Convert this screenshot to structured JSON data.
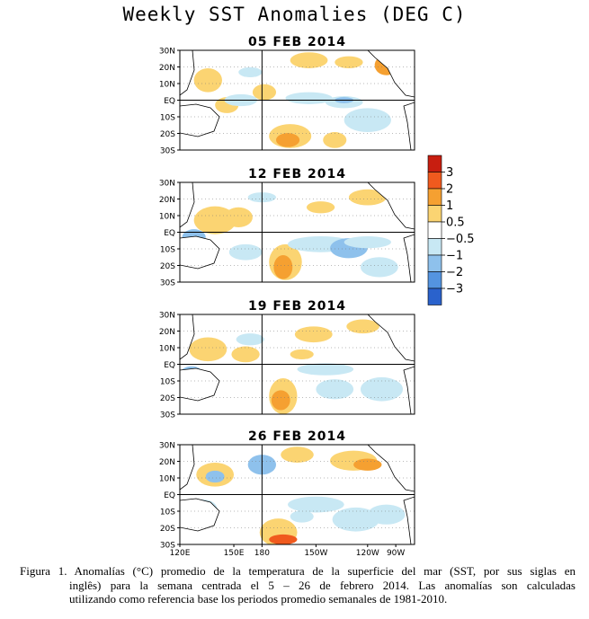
{
  "title": "Weekly SST Anomalies (DEG C)",
  "panels": [
    {
      "date": "05 FEB 2014"
    },
    {
      "date": "12 FEB 2014"
    },
    {
      "date": "19 FEB 2014"
    },
    {
      "date": "26 FEB 2014"
    }
  ],
  "lat_labels": [
    "30N",
    "20N",
    "10N",
    "EQ",
    "10S",
    "20S",
    "30S"
  ],
  "lon_labels": [
    "120E",
    "150E",
    "180",
    "150W",
    "120W",
    "90W"
  ],
  "legend": {
    "labels": [
      "3",
      "2",
      "1",
      "0.5",
      "−0.5",
      "−1",
      "−2",
      "−3"
    ],
    "colors": [
      "#c81e10",
      "#f05a1e",
      "#f5a031",
      "#fbd472",
      "#ffffff",
      "#c8e8f4",
      "#8ec1ec",
      "#5494e0",
      "#2a62cc"
    ]
  },
  "caption": {
    "line1": "Figura 1. Anomalías (°C) promedio de la temperatura de la superficie del mar (SST, por sus siglas en",
    "line2": "inglês) para la semana centrada el 5 – 26 de febrero 2014.   Las anomalías son calculadas",
    "line3": "utilizando como referencia base los periodos promedio semanales de 1981-2010."
  }
}
